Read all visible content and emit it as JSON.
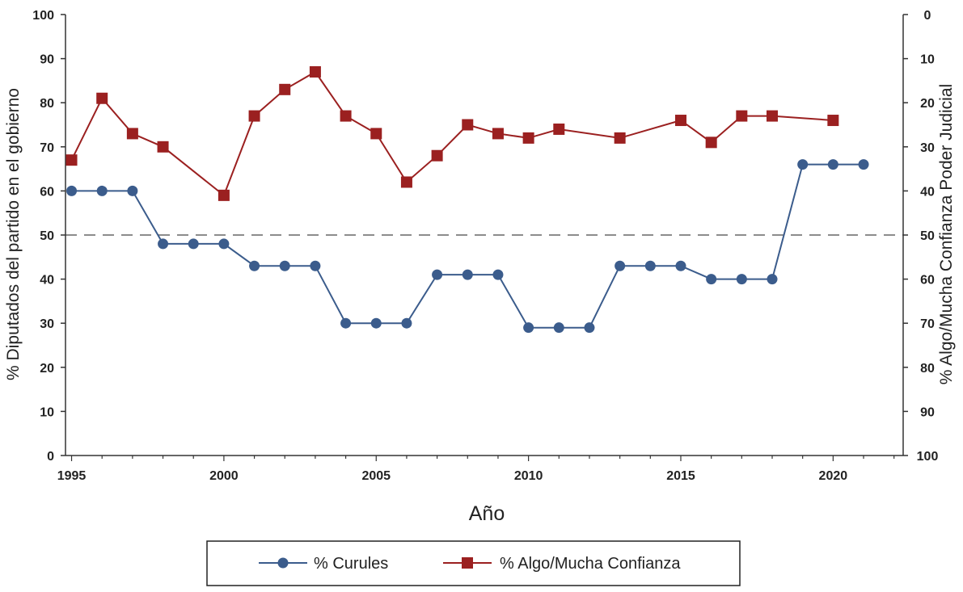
{
  "chart_data": {
    "type": "line",
    "xlabel": "Año",
    "ylabel_left": "% Diputados del partido en el gobierno",
    "ylabel_right": "% Algo/Mucha Confianza Poder Judicial",
    "xlim": [
      1994.8,
      2022.3
    ],
    "ylim_left": [
      0,
      100
    ],
    "ylim_right": [
      100,
      0
    ],
    "right_axis_inverted": true,
    "x_ticks": [
      1995,
      2000,
      2005,
      2010,
      2015,
      2020
    ],
    "y_ticks_left": [
      0,
      10,
      20,
      30,
      40,
      50,
      60,
      70,
      80,
      90,
      100
    ],
    "y_ticks_right": [
      0,
      10,
      20,
      30,
      40,
      50,
      60,
      70,
      80,
      90,
      100
    ],
    "reference_line": {
      "axis": "left",
      "value": 50,
      "style": "dashed",
      "color": "#8c8c8c"
    },
    "grid": false,
    "legend_position": "bottom",
    "series": [
      {
        "name": "% Curules",
        "axis": "left",
        "marker": "circle",
        "color": "#3b5c8c",
        "x": [
          1995,
          1996,
          1997,
          1998,
          1999,
          2000,
          2001,
          2002,
          2003,
          2004,
          2005,
          2006,
          2007,
          2008,
          2009,
          2010,
          2011,
          2012,
          2013,
          2014,
          2015,
          2016,
          2017,
          2018,
          2019,
          2020,
          2021
        ],
        "values": [
          60,
          60,
          60,
          48,
          48,
          48,
          43,
          43,
          43,
          30,
          30,
          30,
          41,
          41,
          41,
          29,
          29,
          29,
          43,
          43,
          43,
          40,
          40,
          40,
          66,
          66,
          66
        ]
      },
      {
        "name": "% Algo/Mucha Confianza",
        "axis": "right",
        "marker": "square",
        "color": "#9b2020",
        "x": [
          1995,
          1996,
          1997,
          1998,
          2000,
          2001,
          2002,
          2003,
          2004,
          2005,
          2006,
          2007,
          2008,
          2009,
          2010,
          2011,
          2013,
          2015,
          2016,
          2017,
          2018,
          2020
        ],
        "values": [
          33,
          19,
          27,
          30,
          41,
          23,
          17,
          13,
          23,
          27,
          38,
          32,
          25,
          27,
          28,
          26,
          28,
          24,
          29,
          23,
          23,
          24
        ]
      }
    ]
  }
}
